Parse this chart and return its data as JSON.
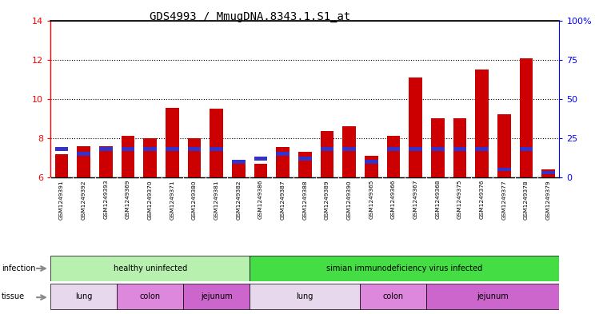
{
  "title": "GDS4993 / MmugDNA.8343.1.S1_at",
  "samples": [
    "GSM1249391",
    "GSM1249392",
    "GSM1249393",
    "GSM1249369",
    "GSM1249370",
    "GSM1249371",
    "GSM1249380",
    "GSM1249381",
    "GSM1249382",
    "GSM1249386",
    "GSM1249387",
    "GSM1249388",
    "GSM1249389",
    "GSM1249390",
    "GSM1249365",
    "GSM1249366",
    "GSM1249367",
    "GSM1249368",
    "GSM1249375",
    "GSM1249376",
    "GSM1249377",
    "GSM1249378",
    "GSM1249379"
  ],
  "count_values": [
    7.2,
    7.6,
    7.6,
    8.1,
    8.0,
    9.55,
    8.0,
    9.5,
    6.9,
    6.7,
    7.55,
    7.3,
    8.35,
    8.6,
    7.1,
    8.1,
    11.1,
    9.0,
    9.0,
    11.5,
    9.2,
    12.05,
    6.4
  ],
  "percentile_values": [
    18,
    15,
    18,
    18,
    18,
    18,
    18,
    18,
    10,
    12,
    15,
    12,
    18,
    18,
    10,
    18,
    18,
    18,
    18,
    18,
    5,
    18,
    3
  ],
  "ylim_left": [
    6,
    14
  ],
  "ylim_right": [
    0,
    100
  ],
  "yticks_left": [
    6,
    8,
    10,
    12,
    14
  ],
  "yticks_right": [
    0,
    25,
    50,
    75,
    100
  ],
  "bar_color": "#cc0000",
  "percentile_color": "#3333cc",
  "bar_width": 0.6,
  "infection_groups": [
    {
      "label": "healthy uninfected",
      "start": 0,
      "end": 9,
      "color": "#b8f0b0"
    },
    {
      "label": "simian immunodeficiency virus infected",
      "start": 9,
      "end": 23,
      "color": "#44dd44"
    }
  ],
  "tissue_defs": [
    {
      "label": "lung",
      "start": 0,
      "end": 3,
      "color": "#e8d8ee"
    },
    {
      "label": "colon",
      "start": 3,
      "end": 6,
      "color": "#dd88dd"
    },
    {
      "label": "jejunum",
      "start": 6,
      "end": 9,
      "color": "#cc66cc"
    },
    {
      "label": "lung",
      "start": 9,
      "end": 14,
      "color": "#e8d8ee"
    },
    {
      "label": "colon",
      "start": 14,
      "end": 17,
      "color": "#dd88dd"
    },
    {
      "label": "jejunum",
      "start": 17,
      "end": 23,
      "color": "#cc66cc"
    }
  ],
  "xtick_bg_color": "#d8d8d8",
  "title_fontsize": 10,
  "tick_fontsize": 7,
  "label_fontsize": 7
}
